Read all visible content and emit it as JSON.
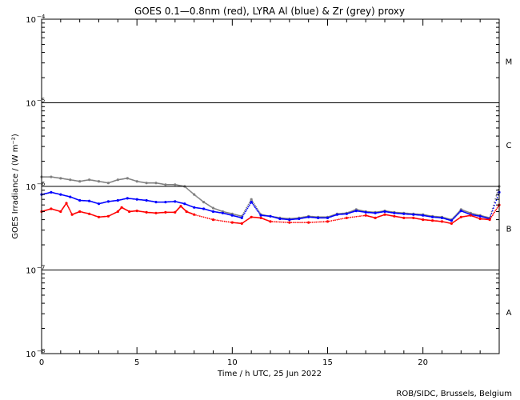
{
  "chart_data": {
    "type": "scatter",
    "title": "GOES 0.1—0.8nm (red), LYRA Al (blue) & Zr (grey) proxy",
    "xlabel": "Time / h UTC, 25 Jun 2022",
    "ylabel": "GOES Irradiance / (W m⁻²)",
    "xlim": [
      0,
      24
    ],
    "ylim": [
      1e-08,
      0.0001
    ],
    "yscale": "log",
    "x_ticks": [
      "0",
      "5",
      "10",
      "15",
      "20"
    ],
    "y_ticks": [
      {
        "base": "10",
        "exp": "−4"
      },
      {
        "base": "10",
        "exp": "−5"
      },
      {
        "base": "10",
        "exp": "−6"
      },
      {
        "base": "10",
        "exp": "−7"
      },
      {
        "base": "10",
        "exp": "−8"
      }
    ],
    "class_labels": [
      "M",
      "C",
      "B",
      "A"
    ],
    "series": [
      {
        "name": "GOES 0.1—0.8nm",
        "color": "#ff0000",
        "x": [
          0,
          0.5,
          1,
          1.3,
          1.6,
          2,
          2.5,
          3,
          3.5,
          4,
          4.2,
          4.6,
          5,
          5.5,
          6,
          6.5,
          7,
          7.3,
          7.6,
          8,
          9,
          10,
          10.5,
          11,
          11.5,
          12,
          13,
          14,
          15,
          16,
          17,
          17.5,
          18,
          18.5,
          19,
          19.5,
          20,
          20.5,
          21,
          21.5,
          22,
          22.5,
          23,
          23.5,
          24
        ],
        "y": [
          5e-07,
          5.4e-07,
          5e-07,
          6.3e-07,
          4.6e-07,
          5e-07,
          4.7e-07,
          4.3e-07,
          4.4e-07,
          5e-07,
          5.6e-07,
          5e-07,
          5.1e-07,
          4.9e-07,
          4.8e-07,
          4.9e-07,
          4.9e-07,
          5.8e-07,
          5e-07,
          4.6e-07,
          4e-07,
          3.7e-07,
          3.6e-07,
          4.3e-07,
          4.2e-07,
          3.8e-07,
          3.7e-07,
          3.7e-07,
          3.8e-07,
          4.2e-07,
          4.5e-07,
          4.2e-07,
          4.6e-07,
          4.4e-07,
          4.2e-07,
          4.2e-07,
          4e-07,
          3.9e-07,
          3.8e-07,
          3.6e-07,
          4.3e-07,
          4.5e-07,
          4.1e-07,
          4e-07,
          6e-07
        ]
      },
      {
        "name": "LYRA Al",
        "color": "#0000ff",
        "x": [
          0,
          0.5,
          1,
          1.5,
          2,
          2.5,
          3,
          3.5,
          4,
          4.5,
          5,
          5.5,
          6,
          6.5,
          7,
          7.5,
          8,
          8.5,
          9,
          9.5,
          10,
          10.5,
          11,
          11.5,
          12,
          12.5,
          13,
          13.5,
          14,
          14.5,
          15,
          15.5,
          16,
          16.5,
          17,
          17.5,
          18,
          18.5,
          19,
          19.5,
          20,
          20.5,
          21,
          21.5,
          22,
          22.5,
          23,
          23.5,
          24
        ],
        "y": [
          8e-07,
          8.5e-07,
          8e-07,
          7.5e-07,
          6.8e-07,
          6.7e-07,
          6.2e-07,
          6.6e-07,
          6.8e-07,
          7.2e-07,
          7e-07,
          6.8e-07,
          6.5e-07,
          6.5e-07,
          6.6e-07,
          6.2e-07,
          5.6e-07,
          5.4e-07,
          5e-07,
          4.8e-07,
          4.5e-07,
          4.2e-07,
          6.5e-07,
          4.5e-07,
          4.4e-07,
          4.1e-07,
          4e-07,
          4.1e-07,
          4.3e-07,
          4.2e-07,
          4.2e-07,
          4.6e-07,
          4.7e-07,
          5.1e-07,
          4.9e-07,
          4.8e-07,
          5e-07,
          4.8e-07,
          4.7e-07,
          4.6e-07,
          4.5e-07,
          4.3e-07,
          4.2e-07,
          3.9e-07,
          5.1e-07,
          4.6e-07,
          4.4e-07,
          4.1e-07,
          8.5e-07
        ]
      },
      {
        "name": "LYRA Zr",
        "color": "#808080",
        "x": [
          0,
          0.5,
          1,
          1.5,
          2,
          2.5,
          3,
          3.5,
          4,
          4.5,
          5,
          5.5,
          6,
          6.5,
          7,
          7.5,
          8,
          8.5,
          9,
          9.5,
          10,
          10.5,
          11,
          11.5,
          12,
          12.5,
          13,
          13.5,
          14,
          14.5,
          15,
          15.5,
          16,
          16.5,
          17,
          17.5,
          18,
          18.5,
          19,
          19.5,
          20,
          20.5,
          21,
          21.5,
          22,
          22.5,
          23,
          23.5,
          24
        ],
        "y": [
          1.3e-06,
          1.3e-06,
          1.25e-06,
          1.2e-06,
          1.15e-06,
          1.2e-06,
          1.15e-06,
          1.1e-06,
          1.2e-06,
          1.25e-06,
          1.15e-06,
          1.1e-06,
          1.1e-06,
          1.05e-06,
          1.05e-06,
          1e-06,
          8e-07,
          6.5e-07,
          5.5e-07,
          5e-07,
          4.7e-07,
          4.4e-07,
          7e-07,
          4.6e-07,
          4.4e-07,
          4.2e-07,
          4.1e-07,
          4.2e-07,
          4.4e-07,
          4.3e-07,
          4.3e-07,
          4.7e-07,
          4.8e-07,
          5.3e-07,
          5e-07,
          4.9e-07,
          5.1e-07,
          4.9e-07,
          4.8e-07,
          4.7e-07,
          4.6e-07,
          4.4e-07,
          4.3e-07,
          4e-07,
          5.3e-07,
          4.8e-07,
          4.5e-07,
          4.2e-07,
          1e-06
        ]
      }
    ],
    "reference_lines": [
      1e-05,
      1e-06,
      1e-07
    ],
    "grid": false
  },
  "footer": {
    "credit": "ROB/SIDC, Brussels, Belgium"
  }
}
